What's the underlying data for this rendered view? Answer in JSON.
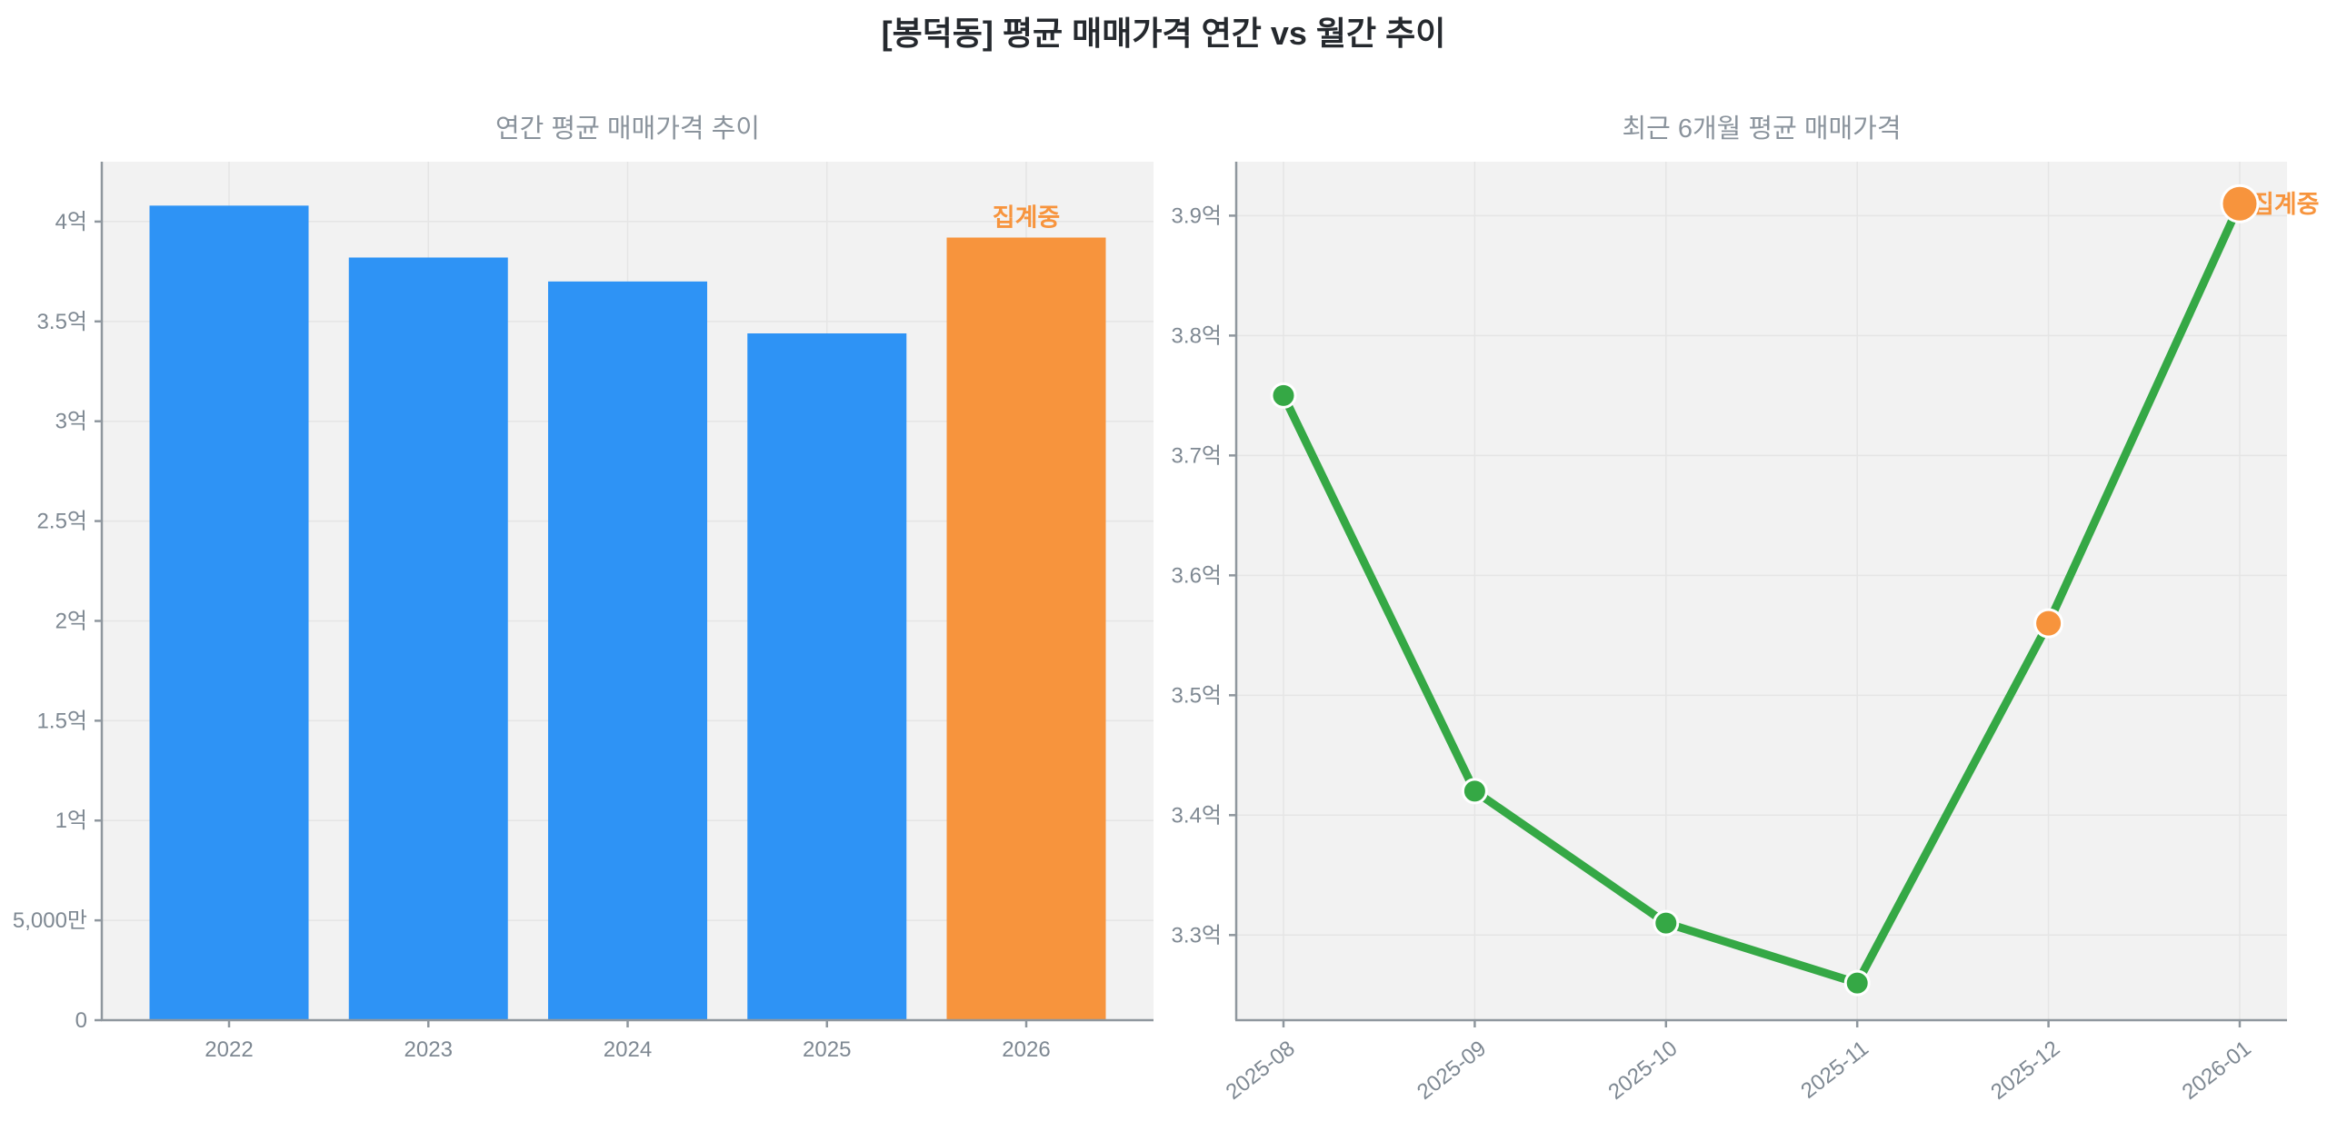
{
  "page": {
    "title": "[봉덕동] 평균 매매가격 연간 vs 월간 추이"
  },
  "colors": {
    "bar_blue": "#2E93F5",
    "accent_orange": "#F7943D",
    "line_green": "#35A845",
    "plot_background": "#F2F2F2",
    "gridline": "#E5E5E5",
    "axis_line": "#8F979E",
    "tick_label": "#7E8892",
    "subtitle_text": "#8A939C",
    "main_title_text": "#25292E",
    "marker_ring": "#FFFFFF"
  },
  "chart_data": [
    {
      "type": "bar",
      "title": "연간 평균 매매가격 추이",
      "unit": "억",
      "categories": [
        "2022",
        "2023",
        "2024",
        "2025",
        "2026"
      ],
      "values": [
        4.08,
        3.82,
        3.7,
        3.44,
        3.92
      ],
      "bar_colors": [
        "blue",
        "blue",
        "blue",
        "blue",
        "orange"
      ],
      "ytick_values": [
        0,
        0.5,
        1,
        1.5,
        2,
        2.5,
        3,
        3.5,
        4
      ],
      "ytick_labels": [
        "0",
        "5,000만",
        "1억",
        "1.5억",
        "2억",
        "2.5억",
        "3억",
        "3.5억",
        "4억"
      ],
      "ylim": [
        0,
        4.3
      ],
      "grid": true,
      "legend": "none",
      "annotation": {
        "text": "집계중",
        "target_index": 4
      }
    },
    {
      "type": "line",
      "title": "최근 6개월 평균 매매가격",
      "unit": "억",
      "x": [
        "2025-08",
        "2025-09",
        "2025-10",
        "2025-11",
        "2025-12",
        "2026-01"
      ],
      "values": [
        3.75,
        3.42,
        3.31,
        3.26,
        3.56,
        3.91
      ],
      "point_colors": [
        "green",
        "green",
        "green",
        "green",
        "orange",
        "orange"
      ],
      "marker_radii": [
        13,
        13,
        13,
        13,
        15,
        20
      ],
      "ytick_values": [
        3.3,
        3.4,
        3.5,
        3.6,
        3.7,
        3.8,
        3.9
      ],
      "ytick_labels": [
        "3.3억",
        "3.4억",
        "3.5억",
        "3.6억",
        "3.7억",
        "3.8억",
        "3.9억"
      ],
      "ylim": [
        3.229,
        3.945
      ],
      "grid": true,
      "legend": "none",
      "annotation": {
        "text": "집계중",
        "target_index": 5
      }
    }
  ]
}
